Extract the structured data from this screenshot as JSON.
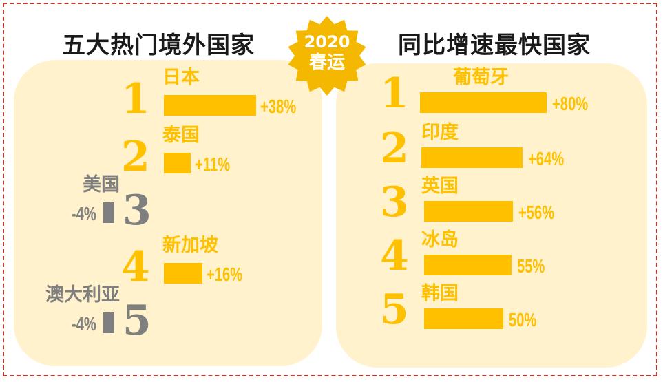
{
  "badge": {
    "year": "2020",
    "label": "春运"
  },
  "colors": {
    "positive": "#ffc000",
    "negative": "#7f7f7f",
    "panel": "#fff2cc",
    "border": "#c0392b"
  },
  "chart_data": [
    {
      "type": "bar",
      "title": "五大热门境外国家",
      "categories": [
        "日本",
        "泰国",
        "美国",
        "新加坡",
        "澳大利亚"
      ],
      "ranks": [
        "1",
        "2",
        "3",
        "4",
        "5"
      ],
      "values": [
        38,
        11,
        -4,
        16,
        -4
      ],
      "labels": [
        "+38%",
        "+11%",
        "-4%",
        "+16%",
        "-4%"
      ],
      "unit": "%"
    },
    {
      "type": "bar",
      "title": "同比增速最快国家",
      "categories": [
        "葡萄牙",
        "印度",
        "英国",
        "冰岛",
        "韩国"
      ],
      "ranks": [
        "1",
        "2",
        "3",
        "4",
        "5"
      ],
      "values": [
        80,
        64,
        56,
        55,
        50
      ],
      "labels": [
        "+80%",
        "+64%",
        "+56%",
        "55%",
        "50%"
      ],
      "unit": "%"
    }
  ]
}
